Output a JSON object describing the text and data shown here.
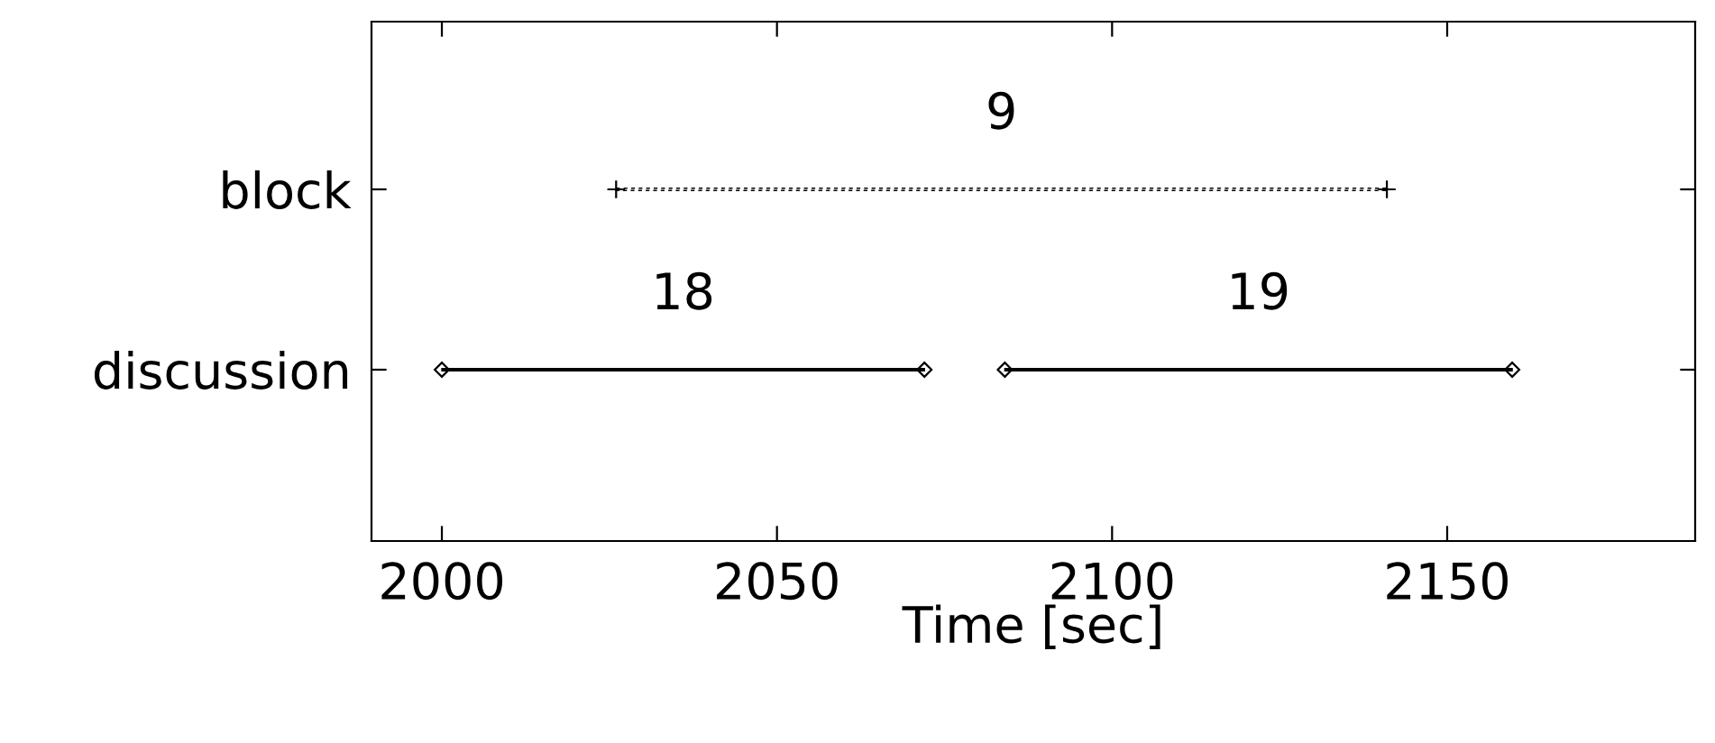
{
  "chart_data": {
    "type": "bar",
    "orientation": "horizontal",
    "xlabel": "Time [sec]",
    "categories": [
      "block",
      "discussion"
    ],
    "series": [
      {
        "color": "#000000",
        "base": [
          2026,
          null
        ],
        "values": [
          115,
          null
        ],
        "marker": "cross",
        "line_style": "dashed"
      },
      {
        "color": "#000000",
        "base": [
          null,
          2000
        ],
        "values": [
          null,
          72
        ],
        "marker": "diamond",
        "line_style": "solid"
      },
      {
        "color": "#000000",
        "base": [
          null,
          2084
        ],
        "values": [
          null,
          75.7
        ],
        "marker": "diamond",
        "line_style": "solid"
      }
    ],
    "xlim": [
      1989.5,
      2187
    ],
    "xticks": [
      2000,
      2050,
      2100,
      2150
    ],
    "annotations": [
      "9",
      "18",
      "19"
    ],
    "grid": false,
    "legend": false
  }
}
